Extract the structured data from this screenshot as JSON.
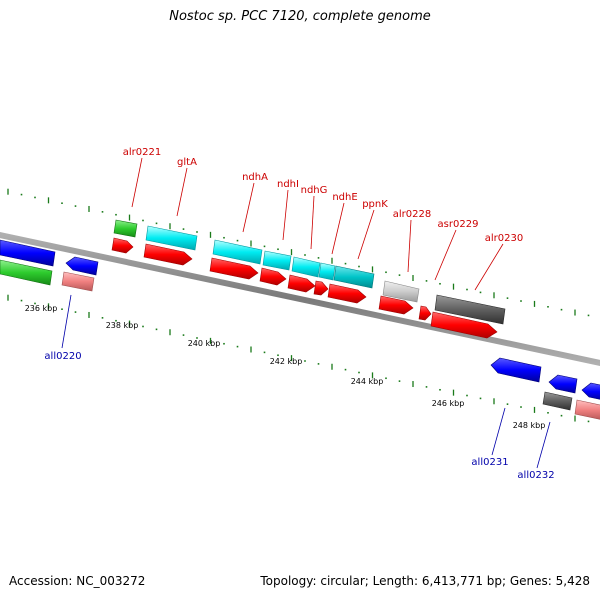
{
  "title": "Nostoc sp. PCC 7120, complete genome",
  "footer": {
    "accession": "Accession: NC_003272",
    "summary": "Topology: circular; Length: 6,413,771 bp; Genes: 5,428"
  },
  "colors": {
    "backbone": "#8c8c8c",
    "tick": "#1a7a1a",
    "label_top": "#cc0000",
    "label_bottom": "#0000aa",
    "forward_cds": "#ff0000",
    "reverse_cds": "#0000ff",
    "gene_cyan": "#00e5ee",
    "gene_green": "#2ecc2e",
    "gene_gray_light": "#c8c8c8",
    "gene_gray_dark": "#555555",
    "gene_pink": "#f08080"
  },
  "scale_labels": [
    "236 kbp",
    "238 kbp",
    "240 kbp",
    "242 kbp",
    "244 kbp",
    "246 kbp",
    "248 kbp"
  ],
  "gene_labels_top": [
    "alr0221",
    "gltA",
    "ndhA",
    "ndhI",
    "ndhG",
    "ndhE",
    "ppnK",
    "alr0228",
    "asr0229",
    "alr0230"
  ],
  "gene_labels_bottom": [
    "all0220",
    "all0231",
    "all0232"
  ]
}
